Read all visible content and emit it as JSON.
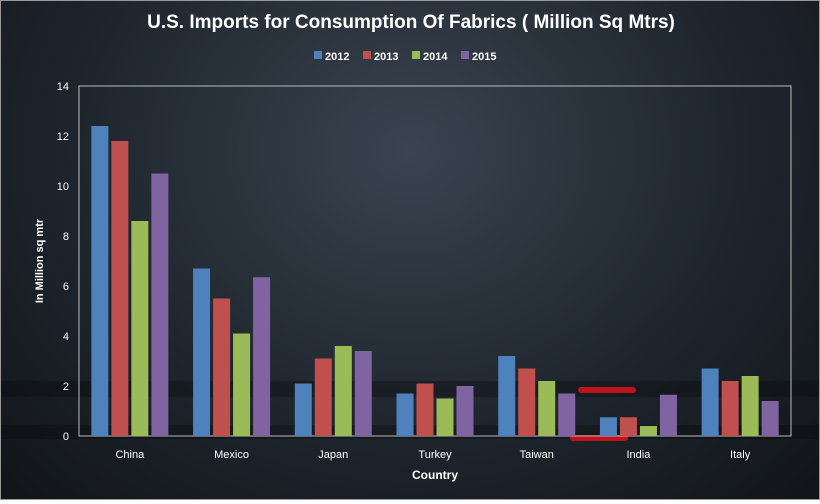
{
  "chart_data": {
    "type": "bar",
    "title": "U.S. Imports for Consumption  Of Fabrics ( Million Sq Mtrs)",
    "xlabel": "Country",
    "ylabel": "In Million sq mtr",
    "ylim": [
      0,
      14
    ],
    "yticks": [
      0,
      2,
      4,
      6,
      8,
      10,
      12,
      14
    ],
    "legend_position": "top",
    "grid": false,
    "categories": [
      "China",
      "Mexico",
      "Japan",
      "Turkey",
      "Taiwan",
      "India",
      "Italy"
    ],
    "series": [
      {
        "name": "2012",
        "color": "#4f81bd",
        "values": [
          12.4,
          6.7,
          2.1,
          1.7,
          3.2,
          0.75,
          2.7
        ]
      },
      {
        "name": "2013",
        "color": "#c0504d",
        "values": [
          11.8,
          5.5,
          3.1,
          2.1,
          2.7,
          0.75,
          2.2
        ]
      },
      {
        "name": "2014",
        "color": "#9bbb59",
        "values": [
          8.6,
          4.1,
          3.6,
          1.5,
          2.2,
          0.4,
          2.4
        ]
      },
      {
        "name": "2015",
        "color": "#8064a2",
        "values": [
          10.5,
          6.35,
          3.4,
          2.0,
          1.7,
          1.65,
          1.4
        ]
      }
    ]
  }
}
